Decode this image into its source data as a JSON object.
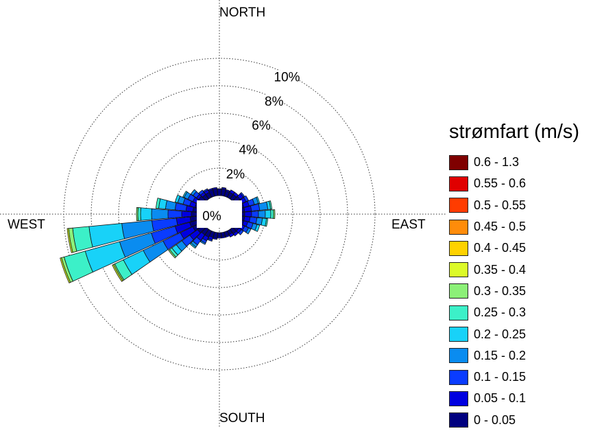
{
  "chart_data": {
    "type": "windrose",
    "legend_title": "strømfart (m/s)",
    "directions": {
      "north": "NORTH",
      "south": "SOUTH",
      "east": "EAST",
      "west": "WEST"
    },
    "center_label": "0%",
    "rings": [
      2,
      4,
      6,
      8,
      10
    ],
    "ring_labels": [
      "2%",
      "4%",
      "6%",
      "8%",
      "10%"
    ],
    "legend_placement": "right",
    "bins": [
      {
        "label": "0 - 0.05",
        "color": "#00007f"
      },
      {
        "label": "0.05 - 0.1",
        "color": "#0000e0"
      },
      {
        "label": "0.1 - 0.15",
        "color": "#0a3cff"
      },
      {
        "label": "0.15 - 0.2",
        "color": "#0a8cf0"
      },
      {
        "label": "0.2 - 0.25",
        "color": "#18d2f8"
      },
      {
        "label": "0.25 - 0.3",
        "color": "#3cf0c8"
      },
      {
        "label": "0.3 - 0.35",
        "color": "#8cf078"
      },
      {
        "label": "0.35 - 0.4",
        "color": "#dcfa28"
      },
      {
        "label": "0.4 - 0.45",
        "color": "#ffd200"
      },
      {
        "label": "0.45 - 0.5",
        "color": "#ff8c0a"
      },
      {
        "label": "0.5 - 0.55",
        "color": "#ff3c00"
      },
      {
        "label": "0.55 - 0.6",
        "color": "#e00000"
      },
      {
        "label": "0.6 - 1.3",
        "color": "#7f0000"
      }
    ],
    "sector_width_deg": 10,
    "sectors": [
      {
        "direction": 0,
        "cumulative": [
          0.5,
          0.5,
          0.5
        ]
      },
      {
        "direction": 10,
        "cumulative": [
          0.5,
          0.6,
          0.6
        ]
      },
      {
        "direction": 20,
        "cumulative": [
          0.4,
          0.5,
          0.5
        ]
      },
      {
        "direction": 30,
        "cumulative": [
          0.4,
          0.6
        ]
      },
      {
        "direction": 40,
        "cumulative": [
          0.4,
          0.6
        ]
      },
      {
        "direction": 50,
        "cumulative": [
          0.5,
          0.8,
          0.9
        ]
      },
      {
        "direction": 60,
        "cumulative": [
          0.5,
          0.8,
          1.0
        ]
      },
      {
        "direction": 70,
        "cumulative": [
          0.5,
          0.9,
          1.3,
          1.6,
          1.7
        ]
      },
      {
        "direction": 80,
        "cumulative": [
          0.5,
          1.0,
          1.6,
          2.2,
          2.4,
          2.5
        ]
      },
      {
        "direction": 90,
        "cumulative": [
          0.5,
          1.0,
          1.5,
          2.0,
          2.4,
          2.6,
          2.7
        ]
      },
      {
        "direction": 100,
        "cumulative": [
          0.5,
          0.9,
          1.4,
          1.8,
          2.1,
          2.2
        ]
      },
      {
        "direction": 110,
        "cumulative": [
          0.5,
          0.8,
          1.2,
          1.5,
          1.7
        ]
      },
      {
        "direction": 120,
        "cumulative": [
          0.4,
          0.7,
          1.0,
          1.2
        ]
      },
      {
        "direction": 130,
        "cumulative": [
          0.4,
          0.6,
          0.8
        ]
      },
      {
        "direction": 140,
        "cumulative": [
          0.4,
          0.6
        ]
      },
      {
        "direction": 150,
        "cumulative": [
          0.3,
          0.5
        ]
      },
      {
        "direction": 160,
        "cumulative": [
          0.3,
          0.4
        ]
      },
      {
        "direction": 170,
        "cumulative": [
          0.3,
          0.4
        ]
      },
      {
        "direction": 180,
        "cumulative": [
          0.3,
          0.4
        ]
      },
      {
        "direction": 190,
        "cumulative": [
          0.4,
          0.5
        ]
      },
      {
        "direction": 200,
        "cumulative": [
          0.4,
          0.6,
          0.7
        ]
      },
      {
        "direction": 210,
        "cumulative": [
          0.5,
          0.8,
          1.0,
          1.1
        ]
      },
      {
        "direction": 220,
        "cumulative": [
          0.5,
          1.0,
          1.4,
          1.6,
          1.7
        ]
      },
      {
        "direction": 230,
        "cumulative": [
          0.6,
          1.3,
          2.0,
          2.5,
          2.9,
          3.1,
          3.2
        ]
      },
      {
        "direction": 240,
        "cumulative": [
          0.8,
          1.8,
          3.2,
          4.8,
          6.4,
          7.1,
          7.2,
          7.3
        ]
      },
      {
        "direction": 250,
        "cumulative": [
          0.9,
          2.0,
          3.8,
          6.2,
          8.8,
          10.4,
          10.6,
          10.7
        ]
      },
      {
        "direction": 260,
        "cumulative": [
          0.8,
          1.8,
          3.6,
          5.8,
          8.2,
          9.4,
          9.7,
          9.8
        ]
      },
      {
        "direction": 270,
        "cumulative": [
          0.7,
          1.4,
          2.4,
          3.6,
          4.4,
          4.6,
          4.7
        ]
      },
      {
        "direction": 280,
        "cumulative": [
          0.6,
          1.1,
          1.9,
          2.6,
          3.1,
          3.3
        ]
      },
      {
        "direction": 290,
        "cumulative": [
          0.5,
          0.9,
          1.4,
          1.8,
          2.0
        ]
      },
      {
        "direction": 300,
        "cumulative": [
          0.5,
          0.8,
          1.2,
          1.5,
          1.6
        ]
      },
      {
        "direction": 310,
        "cumulative": [
          0.5,
          0.7,
          1.0,
          1.2
        ]
      },
      {
        "direction": 320,
        "cumulative": [
          0.4,
          0.6,
          0.8
        ]
      },
      {
        "direction": 330,
        "cumulative": [
          0.4,
          0.6,
          0.7
        ]
      },
      {
        "direction": 340,
        "cumulative": [
          0.5,
          0.6
        ]
      },
      {
        "direction": 350,
        "cumulative": [
          0.5,
          0.6
        ]
      }
    ]
  }
}
